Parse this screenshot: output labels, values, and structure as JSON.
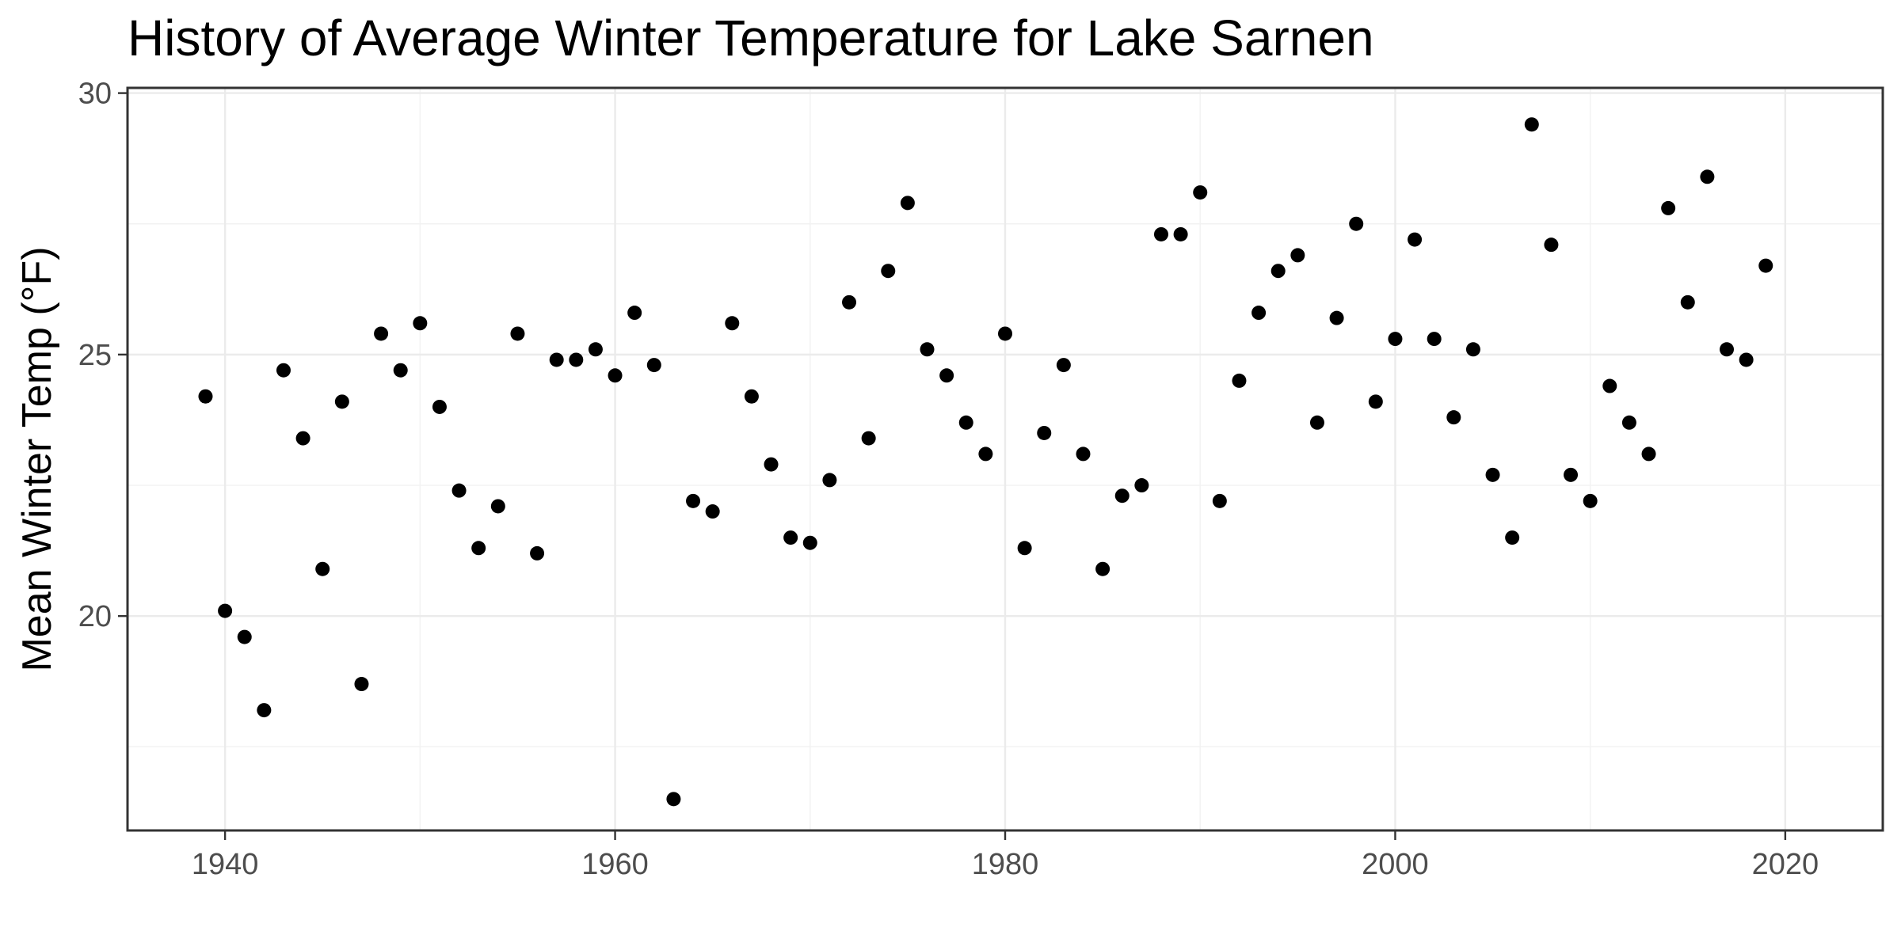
{
  "chart_data": {
    "type": "scatter",
    "title": "History of Average Winter Temperature for Lake Sarnen",
    "xlabel": "",
    "ylabel": "Mean Winter Temp (°F)",
    "xlim": [
      1935,
      2025
    ],
    "ylim": [
      15.9,
      30.1
    ],
    "xticks": [
      1940,
      1960,
      1980,
      2000,
      2020
    ],
    "yticks": [
      20,
      25,
      30
    ],
    "grid": true,
    "legend": "none",
    "point_color": "#000000",
    "x": [
      1939,
      1940,
      1941,
      1942,
      1943,
      1944,
      1945,
      1946,
      1947,
      1948,
      1949,
      1950,
      1951,
      1952,
      1953,
      1954,
      1955,
      1956,
      1957,
      1958,
      1959,
      1960,
      1961,
      1962,
      1963,
      1964,
      1965,
      1966,
      1967,
      1968,
      1969,
      1970,
      1971,
      1972,
      1973,
      1974,
      1975,
      1976,
      1977,
      1978,
      1979,
      1980,
      1981,
      1982,
      1983,
      1984,
      1985,
      1986,
      1987,
      1988,
      1989,
      1990,
      1991,
      1992,
      1993,
      1994,
      1995,
      1996,
      1997,
      1998,
      1999,
      2000,
      2001,
      2002,
      2003,
      2004,
      2005,
      2006,
      2007,
      2008,
      2009,
      2010,
      2011,
      2012,
      2013,
      2014,
      2015,
      2016,
      2017,
      2018,
      2019
    ],
    "y": [
      24.2,
      20.1,
      19.6,
      18.2,
      24.7,
      23.4,
      20.9,
      24.1,
      18.7,
      25.4,
      24.7,
      25.6,
      24.0,
      22.4,
      21.3,
      22.1,
      25.4,
      21.2,
      24.9,
      24.9,
      25.1,
      24.6,
      25.8,
      24.8,
      16.5,
      22.2,
      22.0,
      25.6,
      24.2,
      22.9,
      21.5,
      21.4,
      22.6,
      26.0,
      23.4,
      26.6,
      27.9,
      25.1,
      24.6,
      23.7,
      23.1,
      25.4,
      21.3,
      23.5,
      24.8,
      23.1,
      20.9,
      22.3,
      22.5,
      27.3,
      27.3,
      28.1,
      22.2,
      24.5,
      25.8,
      26.6,
      26.9,
      23.7,
      25.7,
      27.5,
      24.1,
      25.3,
      27.2,
      25.3,
      23.8,
      25.1,
      22.7,
      21.5,
      29.4,
      27.1,
      22.7,
      22.2,
      24.4,
      23.7,
      23.1,
      27.8,
      26.0,
      28.4,
      25.1,
      24.9,
      26.7
    ]
  }
}
